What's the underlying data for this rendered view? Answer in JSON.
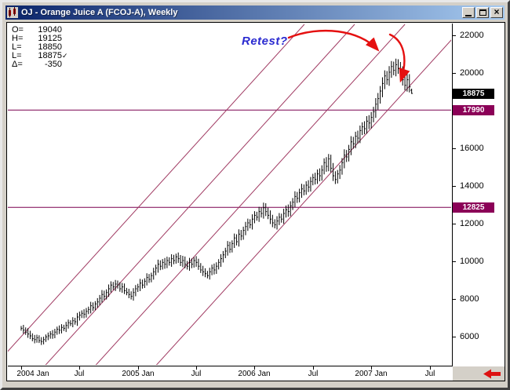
{
  "window": {
    "title": "OJ - Orange Juice A (FCOJ-A), Weekly"
  },
  "icons": {
    "close": "×",
    "minimize": "minimize-bar",
    "maximize": "maximize-box",
    "app": "mini-candlestick",
    "scroll_latest": "red-left-arrow"
  },
  "legend": {
    "rows": [
      {
        "label": "O=",
        "value": "19040"
      },
      {
        "label": "H=",
        "value": "19125"
      },
      {
        "label": "L=",
        "value": "18850"
      },
      {
        "label": "L=",
        "value": "18875",
        "suffix": "✓"
      },
      {
        "label": "Δ=",
        "value": "-350"
      }
    ]
  },
  "annotation": {
    "text": "Retest?",
    "arrows": [
      "M358,18 C398,2 448,8 471,33",
      "M487,14 C505,22 510,45 501,72"
    ]
  },
  "price_axis": {
    "ticks": [
      22000,
      20000,
      18000,
      16000,
      14000,
      12000,
      10000,
      8000,
      6000
    ],
    "current_price_box": "18875",
    "level_boxes": [
      "17990",
      "12825"
    ]
  },
  "time_axis": {
    "ticks": [
      {
        "week": 0,
        "month": "Jan",
        "year": "2004"
      },
      {
        "week": 26,
        "month": "Jul"
      },
      {
        "week": 52,
        "month": "Jan",
        "year": "2005"
      },
      {
        "week": 78,
        "month": "Jul"
      },
      {
        "week": 104,
        "month": "Jan",
        "year": "2006"
      },
      {
        "week": 130,
        "month": "Jul"
      },
      {
        "week": 156,
        "month": "Jan",
        "year": "2007"
      },
      {
        "week": 182,
        "month": "Jul"
      }
    ]
  },
  "chart_data": {
    "type": "bar",
    "subtype": "ohlc-weekly-bars",
    "title": "OJ - Orange Juice A (FCOJ-A), Weekly",
    "x_unit": "week",
    "x_start": "Jan 2004",
    "x_end": "May 2007",
    "ylim": [
      4500,
      22500
    ],
    "y_ticks": [
      22000,
      20000,
      18000,
      16000,
      14000,
      12000,
      10000,
      8000,
      6000
    ],
    "closes": [
      6400,
      6300,
      6200,
      6100,
      6000,
      5850,
      5800,
      5900,
      5750,
      5700,
      5800,
      5950,
      6000,
      6100,
      6050,
      6200,
      6350,
      6300,
      6450,
      6400,
      6550,
      6700,
      6650,
      6800,
      6750,
      7000,
      7100,
      7200,
      7150,
      7300,
      7400,
      7600,
      7500,
      7700,
      7800,
      8000,
      8200,
      8100,
      8300,
      8500,
      8700,
      8600,
      8750,
      8700,
      8500,
      8600,
      8400,
      8300,
      8200,
      8100,
      8300,
      8500,
      8600,
      8800,
      8700,
      8900,
      9100,
      9000,
      9200,
      9400,
      9600,
      9800,
      9700,
      9900,
      9800,
      10000,
      9900,
      10100,
      10000,
      10200,
      10100,
      9900,
      10000,
      9800,
      9700,
      9900,
      9800,
      10000,
      9900,
      9700,
      9500,
      9400,
      9300,
      9200,
      9400,
      9600,
      9500,
      9700,
      9900,
      10100,
      10300,
      10500,
      10800,
      10600,
      10900,
      11200,
      11000,
      11400,
      11300,
      11600,
      11800,
      12000,
      11900,
      12200,
      12400,
      12300,
      12600,
      12500,
      12800,
      12600,
      12400,
      12200,
      12000,
      11900,
      12100,
      12300,
      12200,
      12500,
      12700,
      12600,
      12900,
      13100,
      13400,
      13300,
      13600,
      13800,
      13700,
      14000,
      13900,
      14200,
      14400,
      14300,
      14600,
      14500,
      14800,
      15200,
      15000,
      15400,
      14900,
      14500,
      14300,
      14600,
      14800,
      15200,
      15600,
      15500,
      15900,
      16300,
      16200,
      16600,
      16500,
      16900,
      17100,
      17000,
      17400,
      17300,
      17600,
      17900,
      18300,
      18600,
      19000,
      19400,
      19800,
      19600,
      20000,
      20300,
      20100,
      20400,
      20200,
      20000,
      19600,
      19300,
      19600,
      19225,
      18875
    ],
    "last_bar": {
      "open": 19040,
      "high": 19125,
      "low": 18850,
      "close": 18875,
      "change": -350
    },
    "current_price": 18875,
    "horizontal_levels": [
      17990,
      12825
    ],
    "trend_channel": {
      "lines": [
        {
          "week1": -11.8,
          "price1": 4417,
          "week2": 126.2,
          "price2": 22542
        },
        {
          "week1": 10.6,
          "price1": 4417,
          "week2": 148.6,
          "price2": 22542
        },
        {
          "week1": 33.0,
          "price1": 4417,
          "week2": 171.0,
          "price2": 22542
        },
        {
          "week1": 60.0,
          "price1": 4417,
          "week2": 198.0,
          "price2": 22542
        }
      ]
    }
  },
  "colors": {
    "titlebar_left": "#0a246a",
    "titlebar_right": "#a6caf0",
    "window_bg": "#d4d0c8",
    "plot_bg": "#ffffff",
    "bar_color": "#000000",
    "trendline_color": "#a03a62",
    "level_line_color": "#7a0051",
    "level_box_bg": "#8b0057",
    "level_box_fg": "#ffffff",
    "price_box_bg": "#000000",
    "price_box_fg": "#ffffff",
    "annotation_color": "#2b2bd0",
    "arrow_color": "#e51010",
    "axis_text": "#000000"
  }
}
